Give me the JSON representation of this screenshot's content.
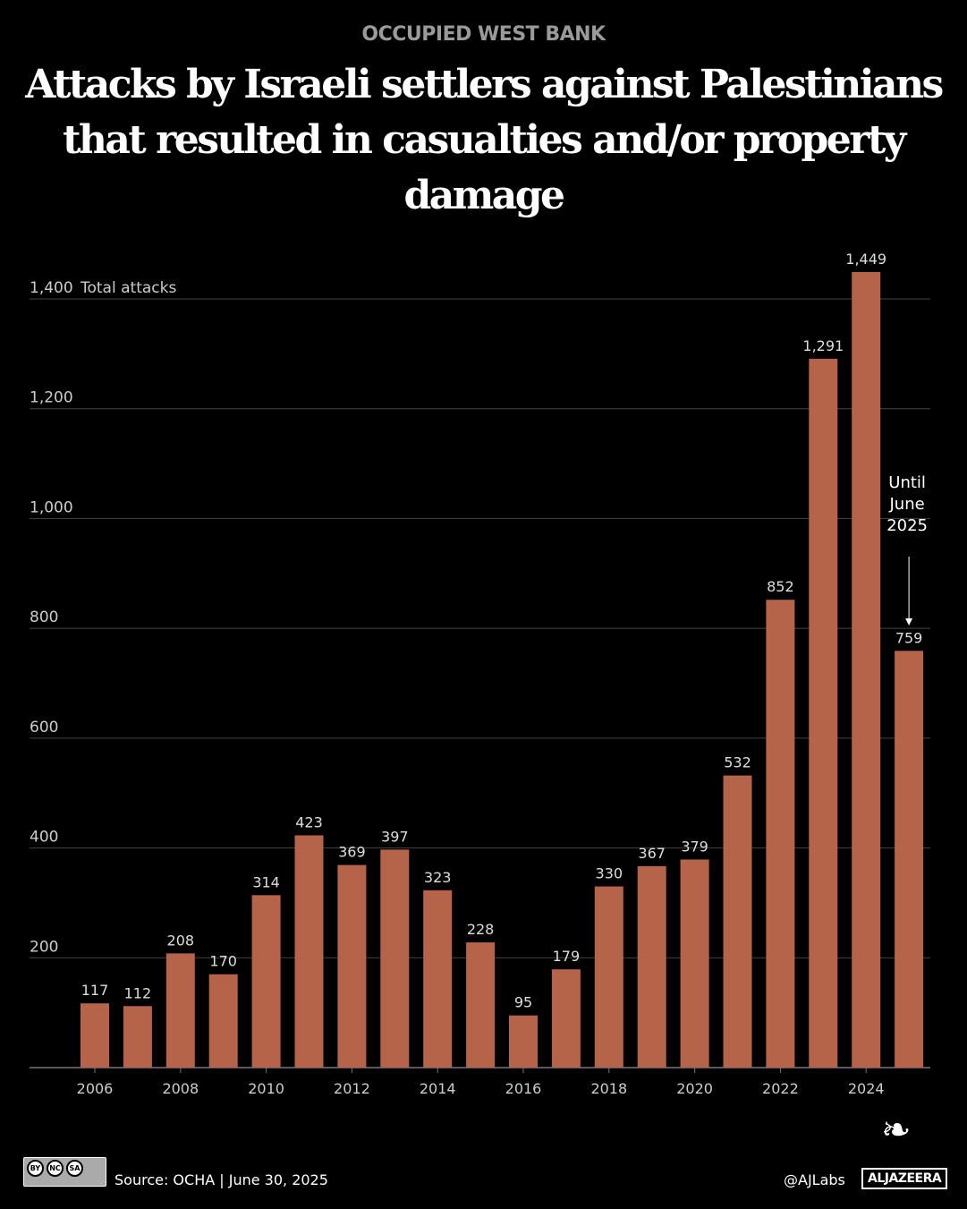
{
  "kicker": "OCCUPIED WEST BANK",
  "title_line1": "Attacks by Israeli settlers against Palestinians",
  "title_line2": "that resulted in casualties and/or property damage",
  "chart_data": {
    "type": "bar",
    "ylabel": "Total attacks",
    "ylim": [
      0,
      1400
    ],
    "yticks": [
      200,
      400,
      600,
      800,
      1000,
      1200,
      1400
    ],
    "ytick_labels": [
      "200",
      "400",
      "600",
      "800",
      "1,000",
      "1,200",
      "1,400"
    ],
    "grid": true,
    "categories": [
      "2006",
      "2007",
      "2008",
      "2009",
      "2010",
      "2011",
      "2012",
      "2013",
      "2014",
      "2015",
      "2016",
      "2017",
      "2018",
      "2019",
      "2020",
      "2021",
      "2022",
      "2023",
      "2024",
      "2025"
    ],
    "xtick_labels": [
      "2006",
      "2008",
      "2010",
      "2012",
      "2014",
      "2016",
      "2018",
      "2020",
      "2022",
      "2024"
    ],
    "values": [
      117,
      112,
      208,
      170,
      314,
      423,
      369,
      397,
      323,
      228,
      95,
      179,
      330,
      367,
      379,
      532,
      852,
      1291,
      1449,
      759
    ],
    "data_labels": [
      "117",
      "112",
      "208",
      "170",
      "314",
      "423",
      "369",
      "397",
      "323",
      "228",
      "95",
      "179",
      "330",
      "367",
      "379",
      "532",
      "852",
      "1,291",
      "1,449",
      "759"
    ],
    "annotation": [
      "Until",
      "June",
      "2025"
    ],
    "bar_color": "#b5644a"
  },
  "footer": {
    "source": "Source:  OCHA | June 30, 2025",
    "license": [
      "BY",
      "NC",
      "SA"
    ],
    "handle": "@AJLabs",
    "brand": "ALJAZEERA"
  }
}
